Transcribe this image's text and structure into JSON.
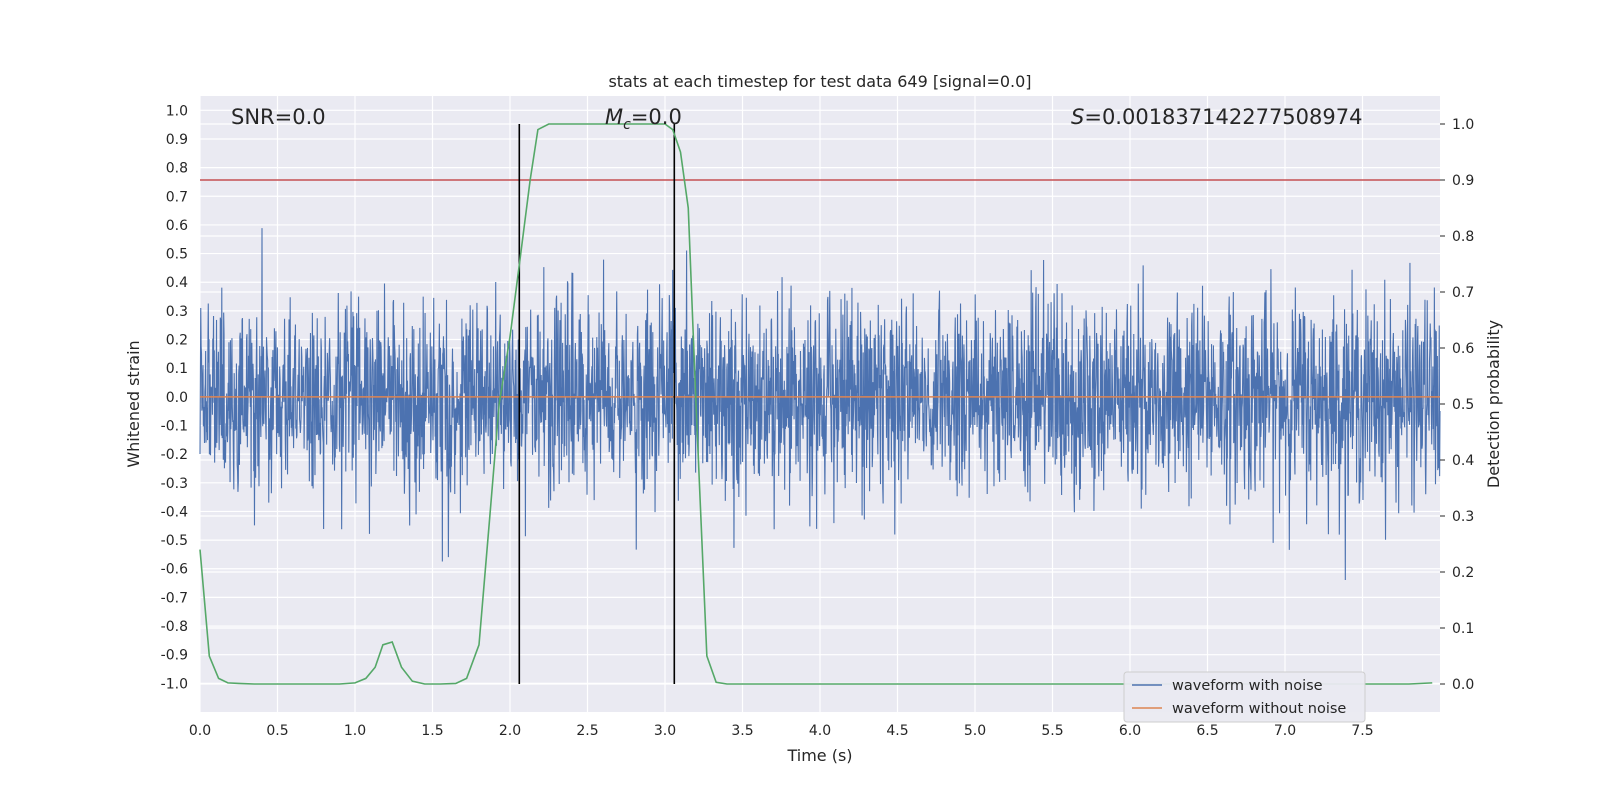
{
  "chart_data": {
    "type": "line",
    "title": "stats at each timestep for test data 649 [signal=0.0]",
    "xlabel": "Time (s)",
    "ylabel": "Whitened strain",
    "y2label": "Detection probability",
    "xlim": [
      0.0,
      8.0
    ],
    "ylim": [
      -1.1,
      1.05
    ],
    "y2lim": [
      -0.05,
      1.05
    ],
    "x_ticks": [
      "0.0",
      "0.5",
      "1.0",
      "1.5",
      "2.0",
      "2.5",
      "3.0",
      "3.5",
      "4.0",
      "4.5",
      "5.0",
      "5.5",
      "6.0",
      "6.5",
      "7.0",
      "7.5"
    ],
    "y_ticks": [
      "1.0",
      "0.9",
      "0.8",
      "0.7",
      "0.6",
      "0.5",
      "0.4",
      "0.3",
      "0.2",
      "0.1",
      "0.0",
      "-0.1",
      "-0.2",
      "-0.3",
      "-0.4",
      "-0.5",
      "-0.6",
      "-0.7",
      "-0.8",
      "-0.9",
      "-1.0"
    ],
    "y2_ticks": [
      "1.0",
      "0.9",
      "0.8",
      "0.7",
      "0.6",
      "0.5",
      "0.4",
      "0.3",
      "0.2",
      "0.1",
      "0.0"
    ],
    "grid": true,
    "legend_position": "lower-right",
    "annotations": {
      "snr": "SNR=0.0",
      "mc_symbol": "M",
      "mc_sub": "c",
      "mc_value": "=0.0",
      "s_symbol": "S",
      "s_value": "=0.001837142277508974"
    },
    "threshold_line": {
      "axis": "y2",
      "value": 0.9,
      "color": "#c44e52"
    },
    "vertical_lines": [
      2.06,
      3.06
    ],
    "series": [
      {
        "name": "waveform with noise",
        "color": "#4c72b0",
        "axis": "y",
        "noise_std": 0.17
      },
      {
        "name": "waveform without noise",
        "color": "#dd8452",
        "axis": "y",
        "constant": 0.0
      },
      {
        "axis": "y2",
        "color": "#55a868",
        "x": [
          0,
          0.06,
          0.12,
          0.18,
          0.25,
          0.35,
          0.5,
          0.7,
          0.9,
          1.0,
          1.07,
          1.13,
          1.18,
          1.24,
          1.3,
          1.37,
          1.45,
          1.55,
          1.65,
          1.72,
          1.8,
          1.87,
          1.93,
          2.0,
          2.07,
          2.13,
          2.18,
          2.25,
          2.35,
          2.5,
          2.7,
          2.9,
          3.0,
          3.05,
          3.1,
          3.15,
          3.2,
          3.27,
          3.33,
          3.4,
          3.5,
          4.0,
          5.0,
          6.0,
          7.0,
          7.5,
          7.8,
          7.95
        ],
        "y": [
          0.24,
          0.05,
          0.01,
          0.002,
          0.001,
          0.0,
          0.0,
          0.0,
          0.0,
          0.002,
          0.01,
          0.03,
          0.07,
          0.075,
          0.03,
          0.005,
          0.0,
          0.0,
          0.001,
          0.01,
          0.07,
          0.3,
          0.5,
          0.62,
          0.77,
          0.9,
          0.99,
          1.0,
          1.0,
          1.0,
          1.0,
          1.0,
          1.0,
          0.99,
          0.95,
          0.85,
          0.5,
          0.05,
          0.003,
          0.0,
          0.0,
          0.0,
          0.0,
          0.0,
          0.0,
          0.0,
          0.0,
          0.002
        ]
      }
    ]
  }
}
